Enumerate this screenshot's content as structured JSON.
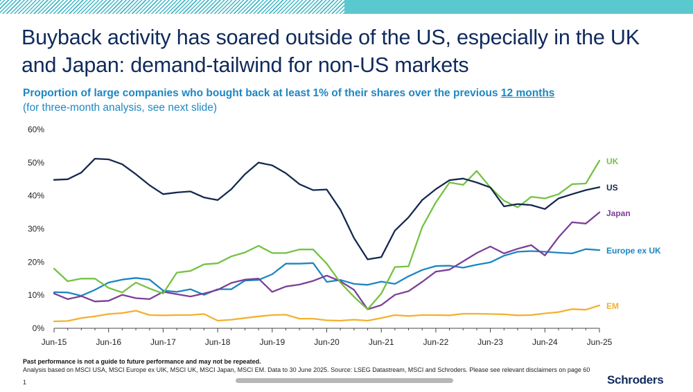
{
  "slide": {
    "title": "Buyback activity has soared outside of the US, especially in the UK and Japan: demand-tailwind for non-US markets",
    "subtitle_main": "Proportion of large companies who bought back at least 1% of their shares over the previous ",
    "subtitle_link": "12 months",
    "subtitle_note": "(for three-month analysis, see next slide)",
    "footer_bold": "Past performance is not a guide to future performance and may not be repeated.",
    "footer_source": "Analysis based on MSCI USA, MSCI Europe ex UIK, MSCI UK, MSCI Japan, MSCI EM. Data to 30 June 2025. Source: LSEG Datastream, MSCI and Schroders. Please see relevant disclaimers on page 60",
    "page_number": "1",
    "logo": "Schroders"
  },
  "colors": {
    "accent_teal": "#5ac8cf",
    "title": "#0f2a5c",
    "subtitle": "#1d87c3"
  },
  "chart_data": {
    "type": "line",
    "title": "Proportion of large companies who bought back at least 1% of their shares over the previous 12 months",
    "xlabel": "",
    "ylabel": "",
    "ylim": [
      0,
      60
    ],
    "yticks": [
      "0%",
      "10%",
      "20%",
      "30%",
      "40%",
      "50%",
      "60%"
    ],
    "xticks": [
      "Jun-15",
      "Jun-16",
      "Jun-17",
      "Jun-18",
      "Jun-19",
      "Jun-20",
      "Jun-21",
      "Jun-22",
      "Jun-23",
      "Jun-24",
      "Jun-25"
    ],
    "grid": false,
    "legend": "inline-right",
    "x_start": "Jun-15",
    "x_step": "quarter",
    "series": [
      {
        "name": "US",
        "color": "#14284f",
        "values": [
          44.8,
          45.0,
          47.0,
          51.2,
          51.0,
          49.5,
          46.5,
          43.2,
          40.5,
          41.0,
          41.3,
          39.5,
          38.7,
          42.0,
          46.5,
          50.0,
          49.2,
          46.8,
          43.5,
          41.7,
          41.9,
          35.8,
          27.2,
          20.8,
          21.5,
          29.5,
          33.5,
          38.7,
          42.0,
          44.7,
          45.2,
          44.0,
          42.5,
          36.8,
          37.5,
          37.2,
          36.0,
          39.2,
          40.5,
          41.7,
          42.6
        ]
      },
      {
        "name": "UK",
        "color": "#73c242",
        "values": [
          18.0,
          14.2,
          15.0,
          15.0,
          12.2,
          10.8,
          13.8,
          12.0,
          10.5,
          16.8,
          17.3,
          19.3,
          19.6,
          21.7,
          22.9,
          24.9,
          22.7,
          22.7,
          23.8,
          23.8,
          19.5,
          13.8,
          9.5,
          5.7,
          10.5,
          18.5,
          18.7,
          30.5,
          38.0,
          44.0,
          43.3,
          47.5,
          42.5,
          38.5,
          36.5,
          39.7,
          39.2,
          40.5,
          43.5,
          43.7,
          50.6
        ]
      },
      {
        "name": "Japan",
        "color": "#7b3f98",
        "values": [
          10.5,
          8.8,
          9.7,
          8.1,
          8.3,
          10.1,
          9.1,
          8.8,
          11.0,
          10.3,
          9.6,
          10.5,
          11.6,
          13.7,
          14.7,
          15.0,
          11.0,
          12.6,
          13.2,
          14.3,
          15.9,
          14.2,
          11.6,
          5.7,
          7.0,
          10.1,
          11.2,
          14.0,
          17.1,
          17.7,
          20.2,
          22.7,
          24.7,
          22.6,
          24.0,
          25.1,
          22.0,
          27.5,
          32.0,
          31.6,
          35.0
        ]
      },
      {
        "name": "Europe ex UK",
        "color": "#1b86c2",
        "values": [
          10.9,
          10.8,
          9.8,
          11.6,
          13.8,
          14.7,
          15.2,
          14.7,
          11.4,
          11.0,
          11.8,
          10.1,
          11.8,
          11.8,
          14.4,
          14.6,
          16.3,
          19.5,
          19.5,
          19.7,
          14.0,
          14.6,
          13.4,
          13.1,
          14.1,
          13.4,
          15.7,
          17.6,
          18.8,
          18.9,
          18.3,
          19.2,
          19.9,
          21.9,
          23.1,
          23.3,
          23.1,
          22.8,
          22.6,
          23.9,
          23.6
        ]
      },
      {
        "name": "EM",
        "color": "#f3b12e",
        "values": [
          2.1,
          2.2,
          3.1,
          3.6,
          4.3,
          4.6,
          5.3,
          4.0,
          3.9,
          4.0,
          4.0,
          4.3,
          2.3,
          2.6,
          3.1,
          3.6,
          4.0,
          4.1,
          2.9,
          2.9,
          2.4,
          2.3,
          2.6,
          2.3,
          3.1,
          4.0,
          3.7,
          4.0,
          4.0,
          3.9,
          4.4,
          4.4,
          4.3,
          4.2,
          3.9,
          4.0,
          4.5,
          4.9,
          5.8,
          5.6,
          6.9
        ]
      }
    ],
    "annotations": [
      {
        "text": "UK",
        "series": "UK"
      },
      {
        "text": "US",
        "series": "US"
      },
      {
        "text": "Japan",
        "series": "Japan"
      },
      {
        "text": "Europe ex UK",
        "series": "Europe ex UK"
      },
      {
        "text": "EM",
        "series": "EM"
      }
    ]
  }
}
